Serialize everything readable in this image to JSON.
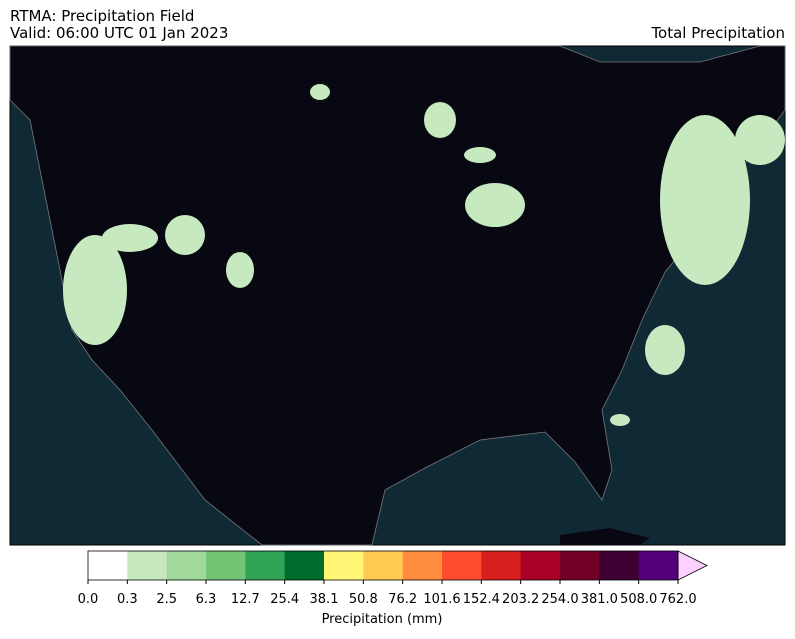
{
  "header": {
    "title": "RTMA: Precipitation Field",
    "valid": "Valid: 06:00 UTC 01 Jan 2023",
    "right_title": "Total Precipitation"
  },
  "colorbar": {
    "label": "Precipitation (mm)",
    "ticks": [
      {
        "value": 0,
        "label": "0.0"
      },
      0.3,
      2.5,
      6.3,
      12.7,
      25.4,
      38.1,
      50.8,
      76.2,
      101.6,
      152.4,
      203.2,
      {
        "value": 254,
        "label": "254.0"
      },
      {
        "value": 381,
        "label": "381.0"
      },
      {
        "value": 508,
        "label": "508.0"
      },
      {
        "value": 762,
        "label": "762.0"
      }
    ],
    "colors": [
      "#ffffff",
      "#c7e9c0",
      "#a1d99b",
      "#74c476",
      "#31a354",
      "#006d2c",
      "#fff775",
      "#ffcb53",
      "#ff8d3f",
      "#ff4b2e",
      "#d91e1e",
      "#a80027",
      "#700025",
      "#3e0033",
      "#54007a"
    ],
    "extend_color": "#fdd0ff"
  }
}
